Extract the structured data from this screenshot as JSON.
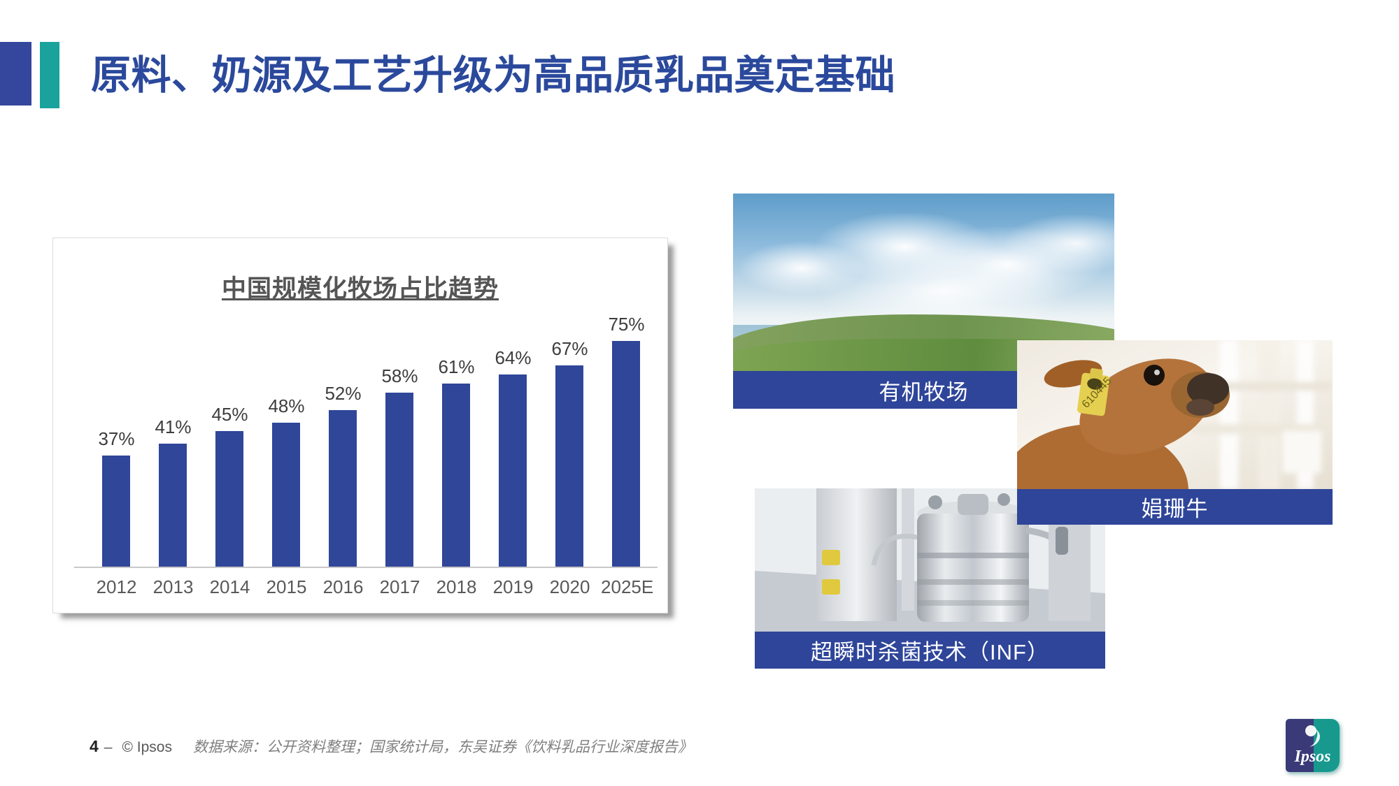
{
  "slide": {
    "title": "原料、奶源及工艺升级为高品质乳品奠定基础",
    "footer": {
      "page_number": "4",
      "separator": "–",
      "copyright": "© Ipsos",
      "source": "数据来源：公开资料整理；国家统计局，东吴证券《饮料乳品行业深度报告》"
    },
    "logo_text": "Ipsos"
  },
  "colors": {
    "title_blue": "#2B499C",
    "accent_navy": "#34479D",
    "accent_teal": "#19A39C",
    "bar_blue": "#2F4699",
    "caption_blue": "#2E4599",
    "logo_navy": "#3A3A78",
    "logo_teal": "#17998E"
  },
  "chart_data": {
    "type": "bar",
    "title": "中国规模化牧场占比趋势",
    "categories": [
      "2012",
      "2013",
      "2014",
      "2015",
      "2016",
      "2017",
      "2018",
      "2019",
      "2020",
      "2025E"
    ],
    "values": [
      37,
      41,
      45,
      48,
      52,
      58,
      61,
      64,
      67,
      75
    ],
    "data_labels": [
      "37%",
      "41%",
      "45%",
      "48%",
      "52%",
      "58%",
      "61%",
      "64%",
      "67%",
      "75%"
    ],
    "unit": "%",
    "ylim": [
      0,
      80
    ],
    "bar_color": "#2F4699",
    "grid": false,
    "legend": "none",
    "xlabel": "",
    "ylabel": ""
  },
  "photos": [
    {
      "caption": "有机牧场"
    },
    {
      "caption": "娟珊牛"
    },
    {
      "caption": "超瞬时杀菌技术（INF）"
    }
  ]
}
